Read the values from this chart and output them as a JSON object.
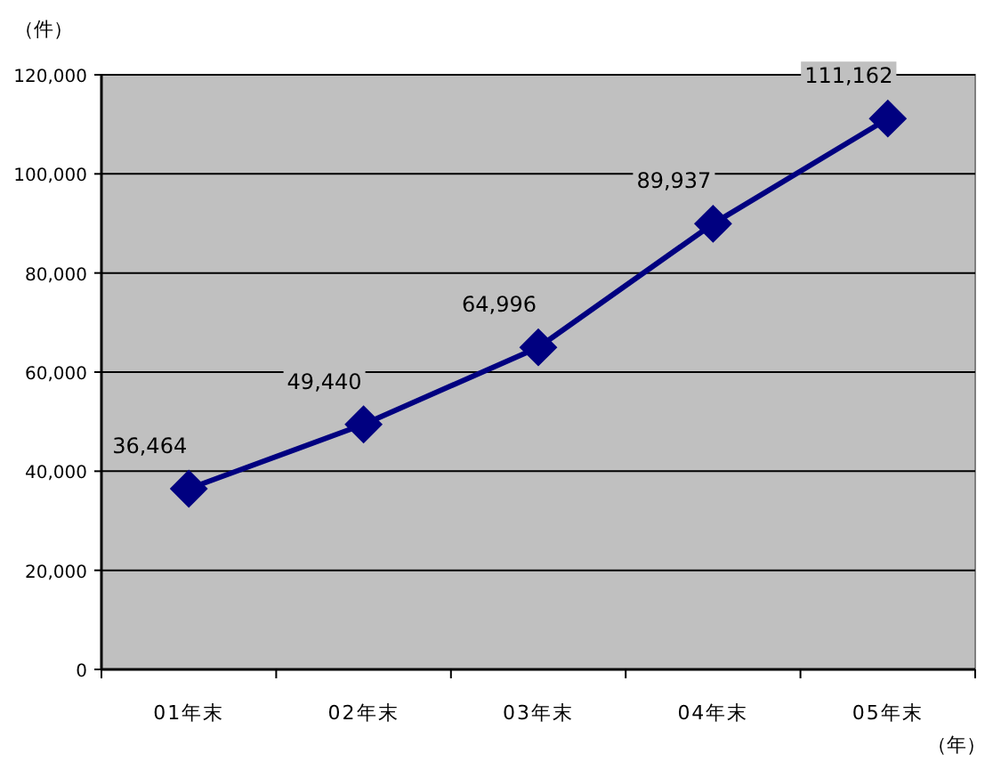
{
  "chart_data": {
    "type": "line",
    "ylabel": "（件）",
    "xlabel": "（年）",
    "categories": [
      "01年末",
      "02年末",
      "03年末",
      "04年末",
      "05年末"
    ],
    "values": [
      36464,
      49440,
      64996,
      89937,
      111162
    ],
    "value_labels": [
      "36,464",
      "49,440",
      "64,996",
      "89,937",
      "111,162"
    ],
    "color": "#000080",
    "marker": "diamond",
    "grid": "y",
    "ylim": [
      0,
      120000
    ],
    "yticks": [
      0,
      {
        "value": 20000,
        "label": "20,000"
      },
      {
        "value": 40000,
        "label": "40,000"
      },
      {
        "value": 60000,
        "label": "60,000"
      },
      {
        "value": 80000,
        "label": "80,000"
      },
      {
        "value": 100000,
        "label": "100,000"
      },
      {
        "value": 120000,
        "label": "120,000"
      }
    ]
  }
}
